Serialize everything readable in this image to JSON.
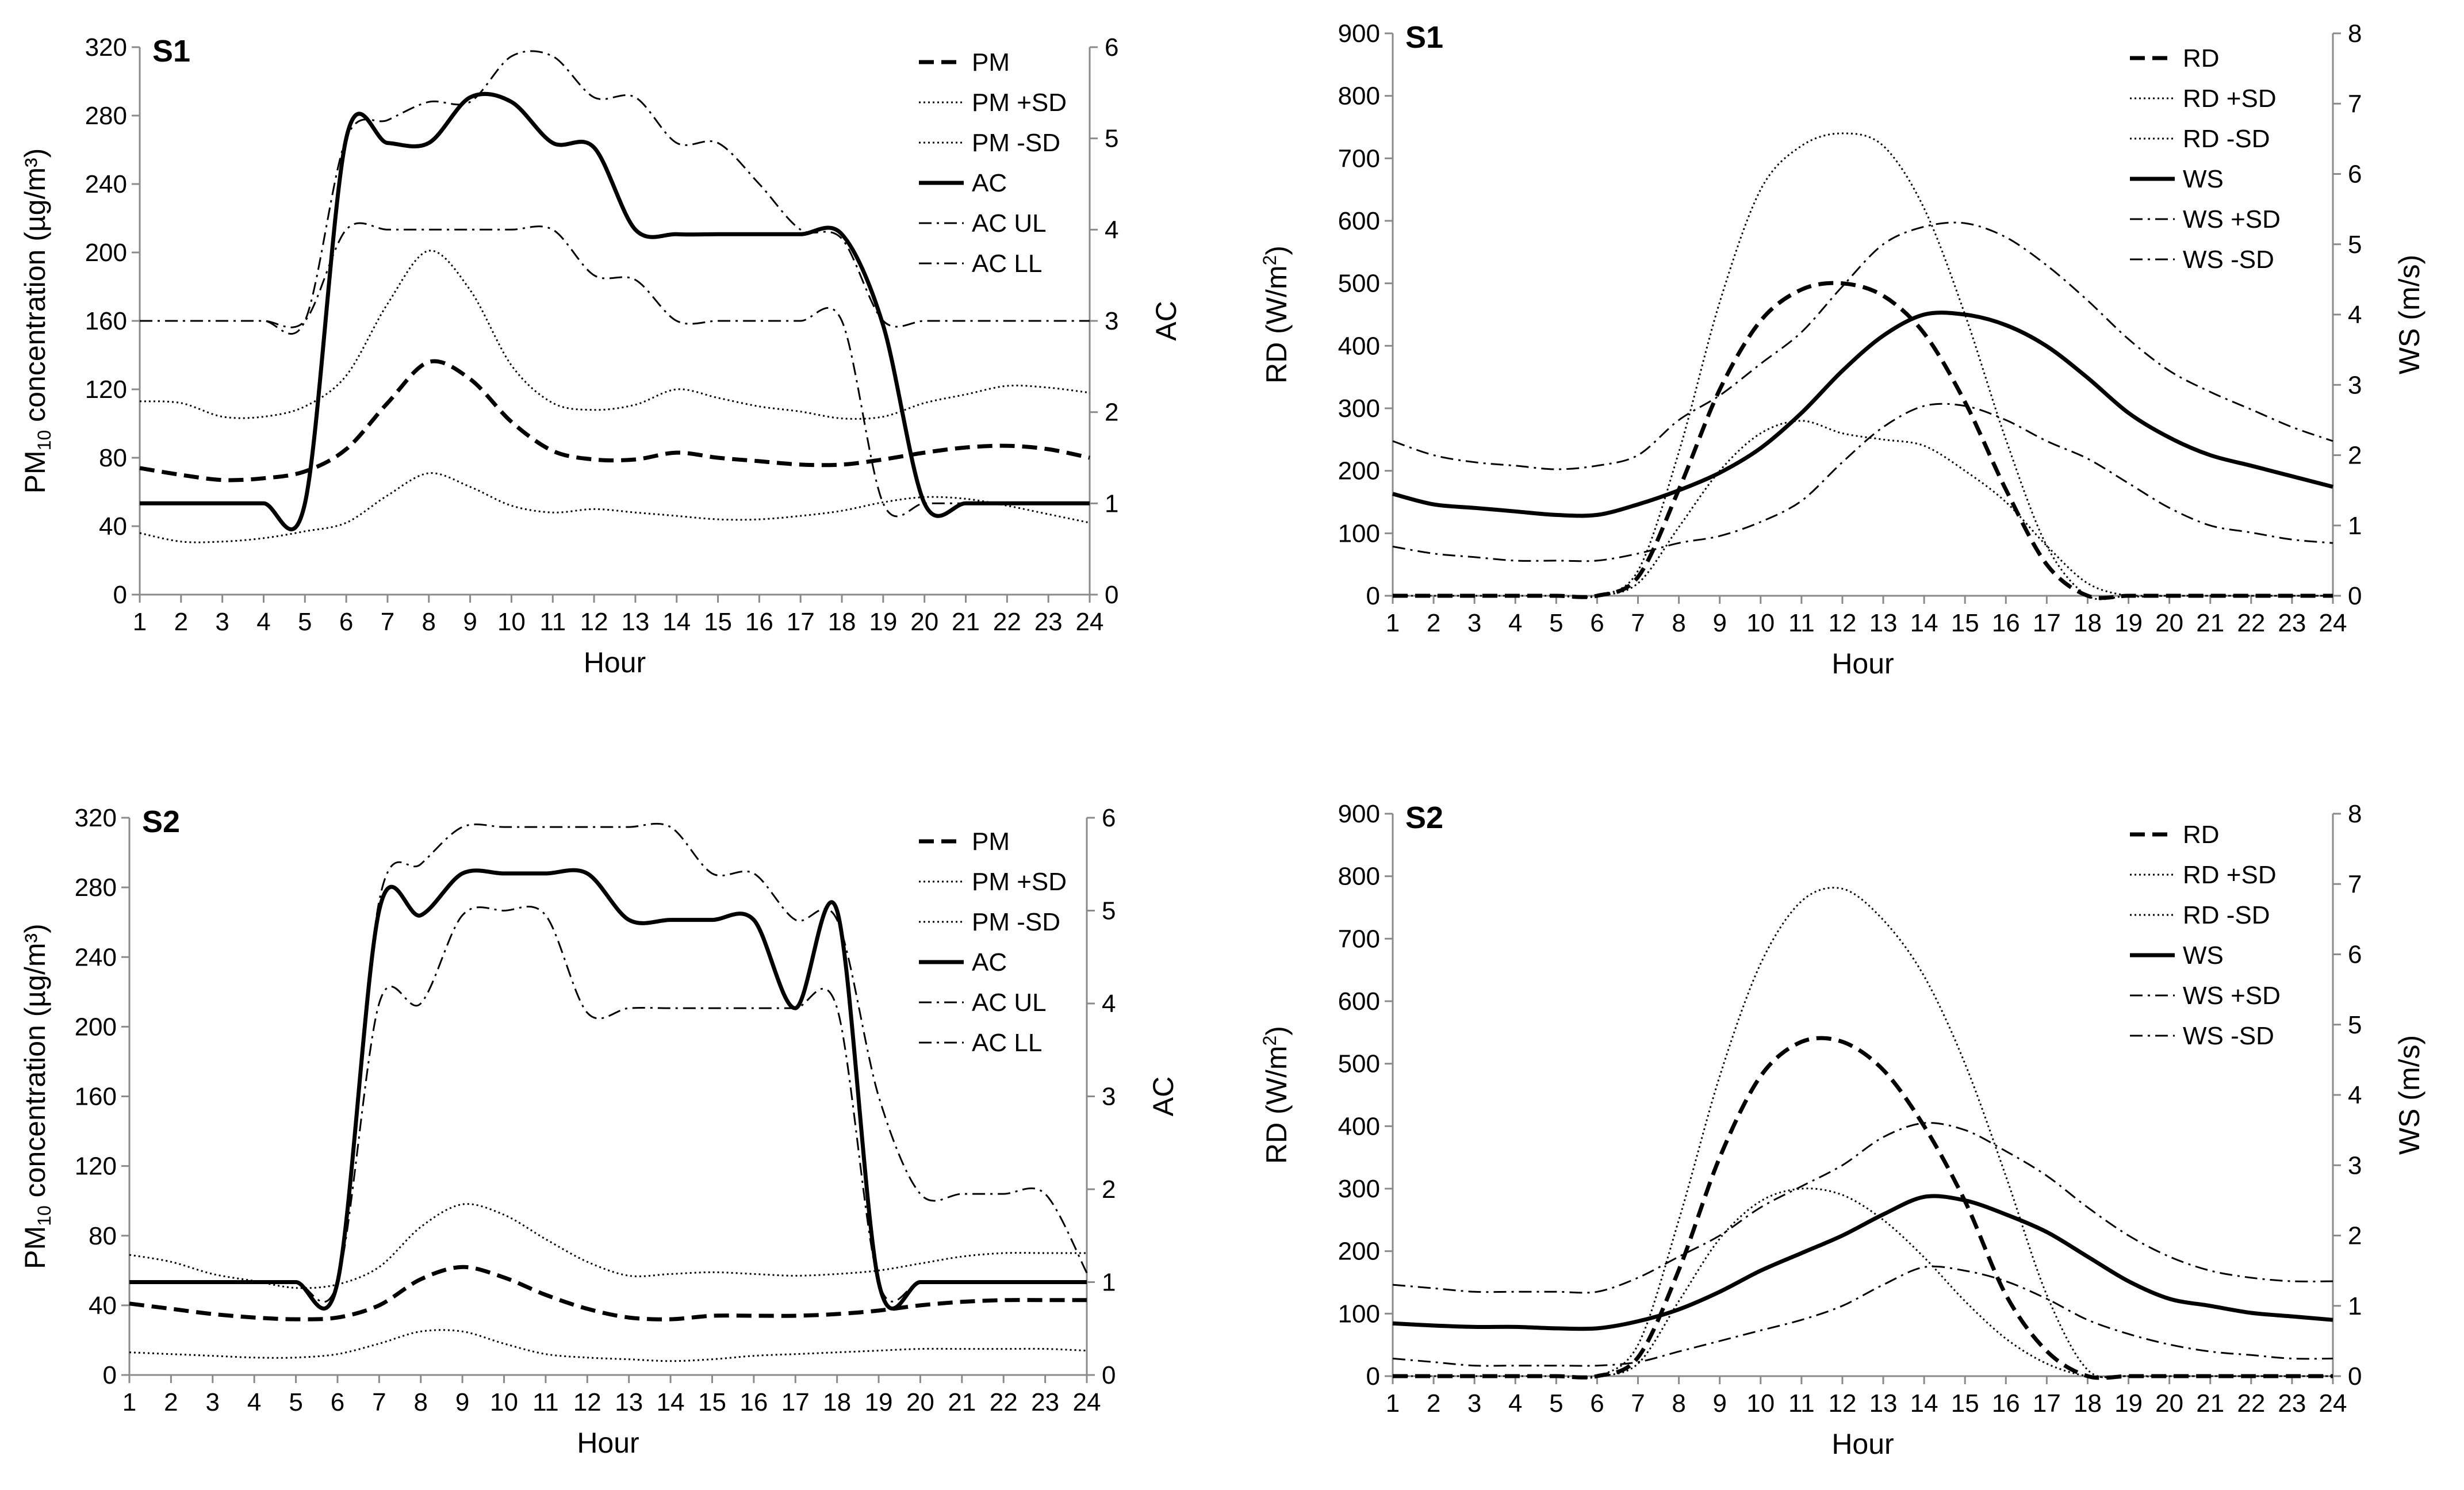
{
  "chart_data": [
    {
      "type": "line",
      "id": "pm_s1",
      "panel_label": "S1",
      "xlabel": "Hour",
      "ylabel": "PM₁₀ concentration (µg/m³)",
      "ylabel_parts": {
        "pre": "PM",
        "sub": "10",
        "post": " concentration (µg/m³)"
      },
      "y2label": "AC",
      "x": [
        1,
        2,
        3,
        4,
        5,
        6,
        7,
        8,
        9,
        10,
        11,
        12,
        13,
        14,
        15,
        16,
        17,
        18,
        19,
        20,
        21,
        22,
        23,
        24
      ],
      "ylim": [
        0,
        320
      ],
      "y_ticks": [
        0,
        40,
        80,
        120,
        160,
        200,
        240,
        280,
        320
      ],
      "y2lim": [
        0,
        6
      ],
      "y2_ticks": [
        0,
        1,
        2,
        3,
        4,
        5,
        6
      ],
      "series": [
        {
          "name": "PM",
          "axis": "left",
          "style": "dash-thick",
          "values": [
            74,
            70,
            67,
            68,
            72,
            85,
            112,
            136,
            126,
            101,
            84,
            79,
            79,
            83,
            80,
            78,
            76,
            76,
            79,
            83,
            86,
            87,
            85,
            80
          ]
        },
        {
          "name": "PM +SD",
          "axis": "left",
          "style": "dotted",
          "values": [
            113,
            112,
            104,
            104,
            110,
            128,
            170,
            201,
            178,
            134,
            112,
            108,
            111,
            120,
            115,
            110,
            107,
            103,
            104,
            112,
            117,
            122,
            121,
            118
          ]
        },
        {
          "name": "PM -SD",
          "axis": "left",
          "style": "dotted",
          "values": [
            36,
            31,
            31,
            33,
            37,
            42,
            58,
            71,
            63,
            52,
            48,
            50,
            48,
            46,
            44,
            44,
            46,
            49,
            54,
            57,
            56,
            52,
            47,
            42
          ]
        },
        {
          "name": "AC",
          "axis": "right",
          "style": "solid",
          "values": [
            1,
            1,
            1,
            1,
            1,
            5,
            4.95,
            4.95,
            5.45,
            5.4,
            4.95,
            4.9,
            4,
            3.95,
            3.95,
            3.95,
            3.95,
            3.95,
            2.95,
            1,
            1,
            1,
            1,
            1
          ]
        },
        {
          "name": "AC UL",
          "axis": "right",
          "style": "dashdot",
          "values": [
            3,
            3,
            3,
            3,
            3,
            5,
            5.2,
            5.4,
            5.4,
            5.9,
            5.9,
            5.45,
            5.45,
            4.95,
            4.95,
            4.5,
            4,
            3.9,
            3,
            3,
            3,
            3,
            3,
            3
          ]
        },
        {
          "name": "AC LL",
          "axis": "right",
          "style": "dashdot",
          "values": [
            3,
            3,
            3,
            3,
            3,
            4,
            4,
            4,
            4,
            4,
            4,
            3.5,
            3.45,
            3,
            3,
            3,
            3,
            3,
            1,
            1,
            1,
            1,
            1,
            1
          ]
        }
      ]
    },
    {
      "type": "line",
      "id": "rd_s1",
      "panel_label": "S1",
      "xlabel": "Hour",
      "ylabel": "RD (W/m²)",
      "ylabel_parts": {
        "pre": "RD (W/m",
        "sup": "2",
        "post": ")"
      },
      "y2label": "WS (m/s)",
      "x": [
        1,
        2,
        3,
        4,
        5,
        6,
        7,
        8,
        9,
        10,
        11,
        12,
        13,
        14,
        15,
        16,
        17,
        18,
        19,
        20,
        21,
        22,
        23,
        24
      ],
      "ylim": [
        0,
        900
      ],
      "y_ticks": [
        0,
        100,
        200,
        300,
        400,
        500,
        600,
        700,
        800,
        900
      ],
      "y2lim": [
        0,
        8
      ],
      "y2_ticks": [
        0,
        1,
        2,
        3,
        4,
        5,
        6,
        7,
        8
      ],
      "series": [
        {
          "name": "RD",
          "axis": "left",
          "style": "dash-thick",
          "values": [
            0,
            0,
            0,
            0,
            0,
            0,
            30,
            170,
            330,
            440,
            490,
            500,
            480,
            420,
            310,
            170,
            50,
            0,
            0,
            0,
            0,
            0,
            0,
            0
          ]
        },
        {
          "name": "RD +SD",
          "axis": "left",
          "style": "dotted",
          "values": [
            0,
            0,
            0,
            0,
            0,
            0,
            40,
            230,
            470,
            650,
            720,
            740,
            720,
            620,
            450,
            250,
            80,
            0,
            0,
            0,
            0,
            0,
            0,
            0
          ]
        },
        {
          "name": "RD -SD",
          "axis": "left",
          "style": "dotted",
          "values": [
            0,
            0,
            0,
            0,
            0,
            0,
            20,
            110,
            200,
            260,
            280,
            260,
            250,
            240,
            200,
            150,
            80,
            20,
            0,
            0,
            0,
            0,
            0,
            0
          ]
        },
        {
          "name": "WS",
          "axis": "right",
          "style": "solid",
          "values": [
            1.45,
            1.3,
            1.25,
            1.2,
            1.15,
            1.15,
            1.3,
            1.5,
            1.75,
            2.1,
            2.6,
            3.2,
            3.7,
            4.0,
            4.0,
            3.85,
            3.55,
            3.1,
            2.6,
            2.25,
            2.0,
            1.85,
            1.7,
            1.55
          ]
        },
        {
          "name": "WS +SD",
          "axis": "right",
          "style": "dashdot",
          "values": [
            2.2,
            2.0,
            1.9,
            1.85,
            1.8,
            1.85,
            2.0,
            2.5,
            2.85,
            3.3,
            3.75,
            4.4,
            5.0,
            5.25,
            5.3,
            5.1,
            4.7,
            4.2,
            3.65,
            3.2,
            2.9,
            2.65,
            2.4,
            2.2
          ]
        },
        {
          "name": "WS -SD",
          "axis": "right",
          "style": "dashdot",
          "values": [
            0.7,
            0.6,
            0.55,
            0.5,
            0.5,
            0.5,
            0.6,
            0.75,
            0.85,
            1.05,
            1.35,
            1.9,
            2.4,
            2.7,
            2.7,
            2.5,
            2.2,
            1.95,
            1.6,
            1.25,
            1.0,
            0.9,
            0.8,
            0.75
          ]
        }
      ]
    },
    {
      "type": "line",
      "id": "pm_s2",
      "panel_label": "S2",
      "xlabel": "Hour",
      "ylabel": "PM₁₀ concentration (µg/m³)",
      "ylabel_parts": {
        "pre": "PM",
        "sub": "10",
        "post": " concentration (µg/m³)"
      },
      "y2label": "AC",
      "x": [
        1,
        2,
        3,
        4,
        5,
        6,
        7,
        8,
        9,
        10,
        11,
        12,
        13,
        14,
        15,
        16,
        17,
        18,
        19,
        20,
        21,
        22,
        23,
        24
      ],
      "ylim": [
        0,
        320
      ],
      "y_ticks": [
        0,
        40,
        80,
        120,
        160,
        200,
        240,
        280,
        320
      ],
      "y2lim": [
        0,
        6
      ],
      "y2_ticks": [
        0,
        1,
        2,
        3,
        4,
        5,
        6
      ],
      "series": [
        {
          "name": "PM",
          "axis": "left",
          "style": "dash-thick",
          "values": [
            41,
            38,
            35,
            33,
            32,
            33,
            40,
            55,
            62,
            56,
            46,
            38,
            33,
            32,
            34,
            34,
            34,
            35,
            37,
            40,
            42,
            43,
            43,
            43
          ]
        },
        {
          "name": "PM +SD",
          "axis": "left",
          "style": "dotted",
          "values": [
            69,
            65,
            58,
            54,
            50,
            52,
            62,
            85,
            98,
            92,
            78,
            65,
            57,
            58,
            59,
            58,
            57,
            58,
            60,
            64,
            68,
            70,
            70,
            70
          ]
        },
        {
          "name": "PM -SD",
          "axis": "left",
          "style": "dotted",
          "values": [
            13,
            12,
            11,
            10,
            10,
            12,
            18,
            25,
            25,
            18,
            12,
            10,
            9,
            8,
            9,
            11,
            12,
            13,
            14,
            15,
            15,
            15,
            15,
            14
          ]
        },
        {
          "name": "AC",
          "axis": "right",
          "style": "solid",
          "values": [
            1,
            1,
            1,
            1,
            1,
            1,
            5,
            4.95,
            5.4,
            5.4,
            5.4,
            5.4,
            4.9,
            4.9,
            4.9,
            4.9,
            3.95,
            5.0,
            1,
            1,
            1,
            1,
            1,
            1
          ]
        },
        {
          "name": "AC UL",
          "axis": "right",
          "style": "dashdot",
          "values": [
            1,
            1,
            1,
            1,
            1,
            1,
            5.1,
            5.5,
            5.9,
            5.9,
            5.9,
            5.9,
            5.9,
            5.9,
            5.4,
            5.4,
            4.9,
            4.9,
            3.0,
            1.95,
            1.95,
            1.95,
            1.95,
            1.1
          ]
        },
        {
          "name": "AC LL",
          "axis": "right",
          "style": "dashdot",
          "values": [
            1,
            1,
            1,
            1,
            1,
            1,
            4,
            4,
            4.95,
            5,
            4.95,
            3.9,
            3.95,
            3.95,
            3.95,
            3.95,
            3.95,
            3.95,
            1,
            1,
            1,
            1,
            1,
            1
          ]
        }
      ]
    },
    {
      "type": "line",
      "id": "rd_s2",
      "panel_label": "S2",
      "xlabel": "Hour",
      "ylabel": "RD (W/m²)",
      "ylabel_parts": {
        "pre": "RD (W/m",
        "sup": "2",
        "post": ")"
      },
      "y2label": "WS (m/s)",
      "x": [
        1,
        2,
        3,
        4,
        5,
        6,
        7,
        8,
        9,
        10,
        11,
        12,
        13,
        14,
        15,
        16,
        17,
        18,
        19,
        20,
        21,
        22,
        23,
        24
      ],
      "ylim": [
        0,
        900
      ],
      "y_ticks": [
        0,
        100,
        200,
        300,
        400,
        500,
        600,
        700,
        800,
        900
      ],
      "y2lim": [
        0,
        8
      ],
      "y2_ticks": [
        0,
        1,
        2,
        3,
        4,
        5,
        6,
        7,
        8
      ],
      "series": [
        {
          "name": "RD",
          "axis": "left",
          "style": "dash-thick",
          "values": [
            0,
            0,
            0,
            0,
            0,
            0,
            30,
            170,
            350,
            480,
            535,
            535,
            490,
            400,
            280,
            130,
            40,
            0,
            0,
            0,
            0,
            0,
            0,
            0
          ]
        },
        {
          "name": "RD +SD",
          "axis": "left",
          "style": "dotted",
          "values": [
            0,
            0,
            0,
            0,
            0,
            0,
            50,
            250,
            480,
            660,
            760,
            780,
            730,
            640,
            500,
            320,
            130,
            10,
            0,
            0,
            0,
            0,
            0,
            0
          ]
        },
        {
          "name": "RD -SD",
          "axis": "left",
          "style": "dotted",
          "values": [
            0,
            0,
            0,
            0,
            0,
            0,
            20,
            120,
            220,
            280,
            300,
            290,
            250,
            190,
            120,
            60,
            20,
            0,
            0,
            0,
            0,
            0,
            0,
            0
          ]
        },
        {
          "name": "WS",
          "axis": "right",
          "style": "solid",
          "values": [
            0.75,
            0.72,
            0.7,
            0.7,
            0.68,
            0.68,
            0.78,
            0.95,
            1.2,
            1.5,
            1.75,
            2.0,
            2.3,
            2.55,
            2.5,
            2.3,
            2.05,
            1.7,
            1.35,
            1.1,
            1.0,
            0.9,
            0.85,
            0.8
          ]
        },
        {
          "name": "WS +SD",
          "axis": "right",
          "style": "dashdot",
          "values": [
            1.3,
            1.25,
            1.2,
            1.2,
            1.2,
            1.2,
            1.4,
            1.7,
            2.0,
            2.4,
            2.7,
            3.0,
            3.4,
            3.6,
            3.5,
            3.2,
            2.85,
            2.4,
            2.0,
            1.7,
            1.5,
            1.4,
            1.35,
            1.35
          ]
        },
        {
          "name": "WS -SD",
          "axis": "right",
          "style": "dashdot",
          "values": [
            0.25,
            0.2,
            0.15,
            0.15,
            0.15,
            0.15,
            0.2,
            0.35,
            0.5,
            0.65,
            0.8,
            1.0,
            1.3,
            1.55,
            1.5,
            1.35,
            1.1,
            0.8,
            0.6,
            0.45,
            0.35,
            0.3,
            0.25,
            0.25
          ]
        }
      ]
    }
  ]
}
